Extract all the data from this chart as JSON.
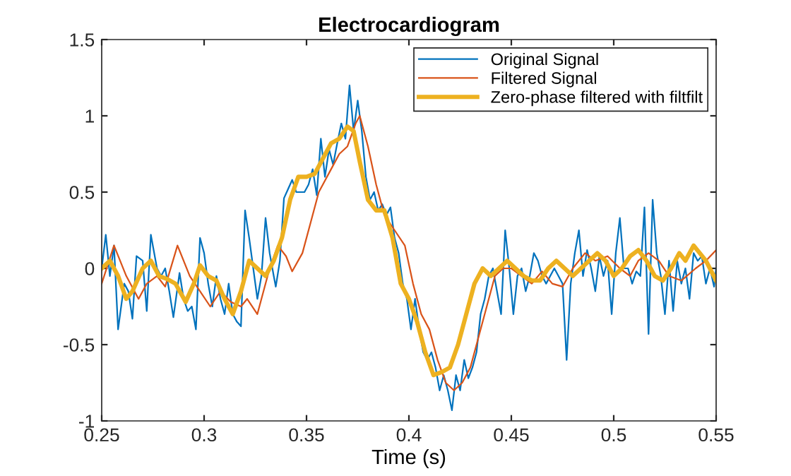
{
  "chart_data": {
    "type": "line",
    "title": "Electrocardiogram",
    "xlabel": "Time (s)",
    "xlim": [
      0.25,
      0.55
    ],
    "xticks": [
      0.25,
      0.3,
      0.35,
      0.4,
      0.45,
      0.5,
      0.55
    ],
    "ylim": [
      -1,
      1.5
    ],
    "yticks": [
      -1,
      -0.5,
      0,
      0.5,
      1,
      1.5
    ],
    "grid": false,
    "legend": "top right",
    "marker": "none",
    "line_style": "solid",
    "series": [
      {
        "name": "Original Signal",
        "color": "#0072bd",
        "x": [
          0.25,
          0.252,
          0.254,
          0.256,
          0.258,
          0.261,
          0.263,
          0.265,
          0.267,
          0.27,
          0.272,
          0.274,
          0.277,
          0.279,
          0.281,
          0.283,
          0.285,
          0.288,
          0.29,
          0.292,
          0.294,
          0.296,
          0.298,
          0.3,
          0.302,
          0.304,
          0.306,
          0.308,
          0.31,
          0.312,
          0.314,
          0.316,
          0.318,
          0.32,
          0.322,
          0.324,
          0.326,
          0.328,
          0.33,
          0.332,
          0.334,
          0.335,
          0.337,
          0.339,
          0.341,
          0.343,
          0.345,
          0.349,
          0.351,
          0.353,
          0.355,
          0.357,
          0.359,
          0.361,
          0.363,
          0.365,
          0.367,
          0.369,
          0.371,
          0.373,
          0.375,
          0.377,
          0.379,
          0.381,
          0.383,
          0.385,
          0.387,
          0.389,
          0.391,
          0.393,
          0.395,
          0.397,
          0.399,
          0.401,
          0.403,
          0.405,
          0.407,
          0.409,
          0.411,
          0.413,
          0.415,
          0.417,
          0.419,
          0.421,
          0.423,
          0.425,
          0.427,
          0.429,
          0.431,
          0.433,
          0.435,
          0.437,
          0.439,
          0.441,
          0.443,
          0.445,
          0.447,
          0.449,
          0.451,
          0.453,
          0.455,
          0.457,
          0.459,
          0.461,
          0.463,
          0.465,
          0.467,
          0.469,
          0.471,
          0.473,
          0.475,
          0.477,
          0.479,
          0.481,
          0.483,
          0.485,
          0.487,
          0.489,
          0.491,
          0.493,
          0.495,
          0.497,
          0.499,
          0.501,
          0.503,
          0.505,
          0.507,
          0.509,
          0.511,
          0.513,
          0.515,
          0.517,
          0.519,
          0.521,
          0.523,
          0.525,
          0.527,
          0.529,
          0.531,
          0.533,
          0.535,
          0.537,
          0.539,
          0.541,
          0.543,
          0.545,
          0.547,
          0.549,
          0.55
        ],
        "values": [
          0.0,
          0.22,
          -0.05,
          0.15,
          -0.4,
          -0.1,
          -0.15,
          -0.33,
          0.08,
          0.05,
          -0.28,
          0.22,
          0.0,
          -0.05,
          0.0,
          -0.15,
          -0.32,
          -0.03,
          -0.2,
          -0.28,
          -0.25,
          -0.4,
          0.2,
          0.1,
          -0.1,
          -0.25,
          -0.05,
          -0.2,
          -0.3,
          -0.1,
          -0.3,
          -0.35,
          -0.38,
          0.38,
          0.2,
          0.0,
          -0.2,
          -0.05,
          0.33,
          0.1,
          -0.05,
          -0.12,
          0.05,
          0.46,
          0.52,
          0.58,
          0.5,
          0.5,
          0.55,
          0.65,
          0.48,
          0.85,
          0.6,
          0.78,
          0.68,
          0.82,
          0.95,
          0.85,
          1.2,
          0.9,
          1.1,
          0.9,
          0.6,
          0.45,
          0.5,
          0.38,
          0.42,
          0.35,
          0.4,
          0.2,
          0.1,
          -0.1,
          -0.2,
          -0.4,
          -0.2,
          -0.4,
          -0.55,
          -0.6,
          -0.55,
          -0.65,
          -0.8,
          -0.7,
          -0.8,
          -0.93,
          -0.7,
          -0.8,
          -0.6,
          -0.72,
          -0.65,
          -0.55,
          -0.3,
          -0.2,
          -0.05,
          0.0,
          -0.15,
          -0.3,
          0.25,
          0.0,
          -0.3,
          -0.05,
          0.0,
          -0.15,
          -0.05,
          0.1,
          0.05,
          -0.05,
          -0.1,
          -0.05,
          0.0,
          -0.05,
          -0.1,
          -0.6,
          -0.1,
          0.1,
          0.25,
          -0.05,
          0.12,
          0.0,
          -0.15,
          0.08,
          -0.05,
          0.05,
          -0.3,
          0.1,
          0.33,
          0.0,
          0.0,
          -0.1,
          -0.02,
          -0.05,
          0.4,
          -0.43,
          0.45,
          0.1,
          -0.05,
          -0.3,
          0.05,
          -0.28,
          0.05,
          -0.1,
          0.0,
          -0.2,
          0.1,
          0.05,
          0.08,
          -0.1,
          0.0,
          -0.12,
          0.0
        ]
      },
      {
        "name": "Filtered Signal",
        "color": "#d95319",
        "x": [
          0.25,
          0.256,
          0.262,
          0.268,
          0.272,
          0.277,
          0.281,
          0.287,
          0.293,
          0.298,
          0.303,
          0.308,
          0.313,
          0.318,
          0.321,
          0.326,
          0.332,
          0.336,
          0.34,
          0.343,
          0.348,
          0.352,
          0.356,
          0.362,
          0.366,
          0.37,
          0.374,
          0.376,
          0.38,
          0.384,
          0.388,
          0.393,
          0.398,
          0.402,
          0.406,
          0.41,
          0.414,
          0.418,
          0.422,
          0.426,
          0.43,
          0.434,
          0.438,
          0.442,
          0.446,
          0.45,
          0.455,
          0.46,
          0.465,
          0.47,
          0.475,
          0.48,
          0.486,
          0.491,
          0.497,
          0.503,
          0.508,
          0.512,
          0.517,
          0.522,
          0.527,
          0.533,
          0.54,
          0.545,
          0.55
        ],
        "values": [
          -0.1,
          0.15,
          -0.05,
          -0.2,
          -0.1,
          -0.05,
          -0.12,
          0.15,
          -0.05,
          -0.15,
          -0.25,
          -0.15,
          -0.22,
          -0.25,
          -0.2,
          -0.3,
          0.0,
          0.15,
          0.08,
          -0.02,
          0.1,
          0.3,
          0.5,
          0.65,
          0.75,
          0.8,
          0.95,
          1.0,
          0.8,
          0.55,
          0.35,
          0.25,
          0.15,
          -0.1,
          -0.3,
          -0.4,
          -0.6,
          -0.75,
          -0.8,
          -0.75,
          -0.65,
          -0.45,
          -0.25,
          -0.05,
          0.0,
          0.0,
          -0.05,
          -0.1,
          -0.02,
          -0.1,
          -0.12,
          0.0,
          0.1,
          0.05,
          0.08,
          0.0,
          -0.05,
          0.05,
          0.1,
          0.05,
          -0.05,
          -0.08,
          0.0,
          0.05,
          0.12
        ]
      },
      {
        "name": "Zero-phase filtered with filtfilt",
        "color": "#edb120",
        "x": [
          0.25,
          0.254,
          0.258,
          0.262,
          0.265,
          0.27,
          0.274,
          0.278,
          0.282,
          0.286,
          0.291,
          0.295,
          0.298,
          0.302,
          0.306,
          0.31,
          0.314,
          0.318,
          0.322,
          0.326,
          0.33,
          0.334,
          0.338,
          0.342,
          0.346,
          0.35,
          0.354,
          0.358,
          0.362,
          0.366,
          0.37,
          0.373,
          0.376,
          0.38,
          0.384,
          0.388,
          0.392,
          0.396,
          0.4,
          0.404,
          0.408,
          0.412,
          0.416,
          0.42,
          0.424,
          0.428,
          0.432,
          0.436,
          0.44,
          0.444,
          0.448,
          0.452,
          0.456,
          0.46,
          0.464,
          0.468,
          0.472,
          0.476,
          0.48,
          0.484,
          0.488,
          0.492,
          0.496,
          0.5,
          0.504,
          0.508,
          0.512,
          0.516,
          0.52,
          0.524,
          0.528,
          0.532,
          0.535,
          0.539,
          0.545,
          0.55
        ],
        "values": [
          0.0,
          0.05,
          -0.05,
          -0.2,
          -0.15,
          0.0,
          0.05,
          -0.05,
          -0.07,
          -0.1,
          -0.22,
          -0.1,
          0.02,
          -0.05,
          -0.08,
          -0.2,
          -0.3,
          -0.15,
          0.05,
          0.0,
          -0.05,
          0.05,
          0.2,
          0.45,
          0.6,
          0.6,
          0.62,
          0.72,
          0.82,
          0.85,
          0.93,
          0.9,
          0.7,
          0.45,
          0.38,
          0.38,
          0.2,
          -0.1,
          -0.2,
          -0.35,
          -0.55,
          -0.7,
          -0.68,
          -0.65,
          -0.5,
          -0.3,
          -0.1,
          0.0,
          -0.05,
          0.0,
          0.05,
          0.0,
          -0.05,
          -0.08,
          -0.08,
          0.0,
          0.05,
          0.0,
          -0.05,
          0.0,
          0.05,
          0.1,
          0.05,
          -0.05,
          0.0,
          0.08,
          0.12,
          0.05,
          -0.05,
          -0.08,
          0.0,
          0.1,
          0.05,
          0.15,
          0.05,
          -0.08
        ]
      }
    ]
  }
}
